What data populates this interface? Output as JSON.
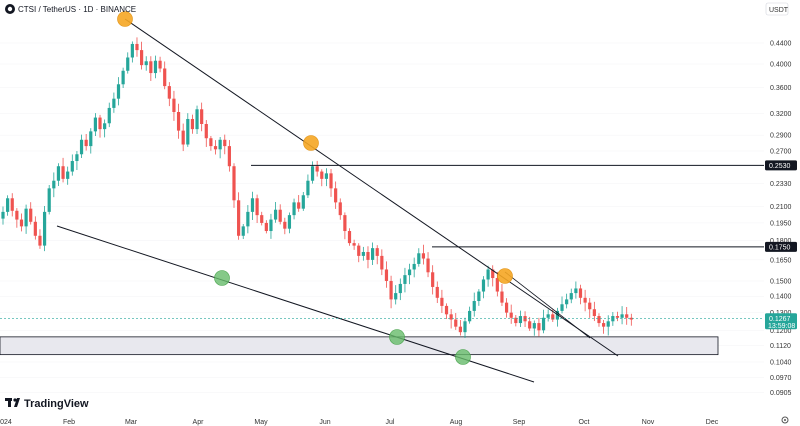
{
  "header": {
    "title": "CTSI / TetherUS · 1D · BINANCE",
    "currency": "USDT"
  },
  "branding": {
    "logo_text": "TradingView",
    "logo_icon": "tradingview-logo-icon"
  },
  "colors": {
    "up": "#26a69a",
    "down": "#ef5350",
    "resistance_tag": "#131722",
    "current_tag": "#26a69a",
    "orange": "#f5a623",
    "green": "#66bb6a",
    "zone_fill": "#e8e8ee"
  },
  "chart_data": {
    "type": "candlestick",
    "title": "CTSI / TetherUS · 1D · BINANCE",
    "y_scale": "log",
    "ylim": [
      0.086,
      0.52
    ],
    "y_ticks": [
      "0.4400",
      "0.4000",
      "0.3600",
      "0.3200",
      "0.2900",
      "0.2700",
      "0.2330",
      "0.2100",
      "0.1950",
      "0.1800",
      "0.1650",
      "0.1500",
      "0.1400",
      "0.1300",
      "0.1200",
      "0.1120",
      "0.1040",
      "0.0970",
      "0.0905"
    ],
    "x_ticks": [
      "2024",
      "Feb",
      "Mar",
      "Apr",
      "May",
      "Jun",
      "Jul",
      "Aug",
      "Sep",
      "Oct",
      "Nov",
      "Dec"
    ],
    "closes": [
      0.205,
      0.218,
      0.206,
      0.198,
      0.192,
      0.208,
      0.196,
      0.184,
      0.176,
      0.205,
      0.228,
      0.236,
      0.252,
      0.238,
      0.246,
      0.258,
      0.266,
      0.284,
      0.276,
      0.295,
      0.314,
      0.298,
      0.306,
      0.328,
      0.342,
      0.365,
      0.388,
      0.412,
      0.438,
      0.426,
      0.398,
      0.405,
      0.384,
      0.406,
      0.392,
      0.362,
      0.342,
      0.322,
      0.296,
      0.278,
      0.312,
      0.298,
      0.326,
      0.305,
      0.286,
      0.276,
      0.272,
      0.284,
      0.276,
      0.252,
      0.216,
      0.184,
      0.192,
      0.205,
      0.218,
      0.202,
      0.195,
      0.188,
      0.198,
      0.207,
      0.196,
      0.19,
      0.202,
      0.214,
      0.208,
      0.221,
      0.236,
      0.252,
      0.246,
      0.238,
      0.244,
      0.228,
      0.214,
      0.202,
      0.188,
      0.178,
      0.176,
      0.168,
      0.171,
      0.165,
      0.174,
      0.168,
      0.158,
      0.15,
      0.138,
      0.142,
      0.148,
      0.154,
      0.158,
      0.162,
      0.17,
      0.166,
      0.156,
      0.146,
      0.139,
      0.134,
      0.129,
      0.126,
      0.122,
      0.119,
      0.125,
      0.131,
      0.137,
      0.143,
      0.151,
      0.158,
      0.152,
      0.143,
      0.136,
      0.13,
      0.127,
      0.124,
      0.128,
      0.125,
      0.121,
      0.124,
      0.12,
      0.127,
      0.129,
      0.126,
      0.131,
      0.135,
      0.138,
      0.142,
      0.145,
      0.139,
      0.136,
      0.132,
      0.128,
      0.124,
      0.122,
      0.125,
      0.128,
      0.127,
      0.129,
      0.127,
      0.126
    ],
    "current_price": "0.1267",
    "countdown": "13:59:08",
    "horizontal_levels": [
      "0.2530",
      "0.1750"
    ],
    "demand_zone": [
      0.1075,
      0.1165
    ]
  }
}
